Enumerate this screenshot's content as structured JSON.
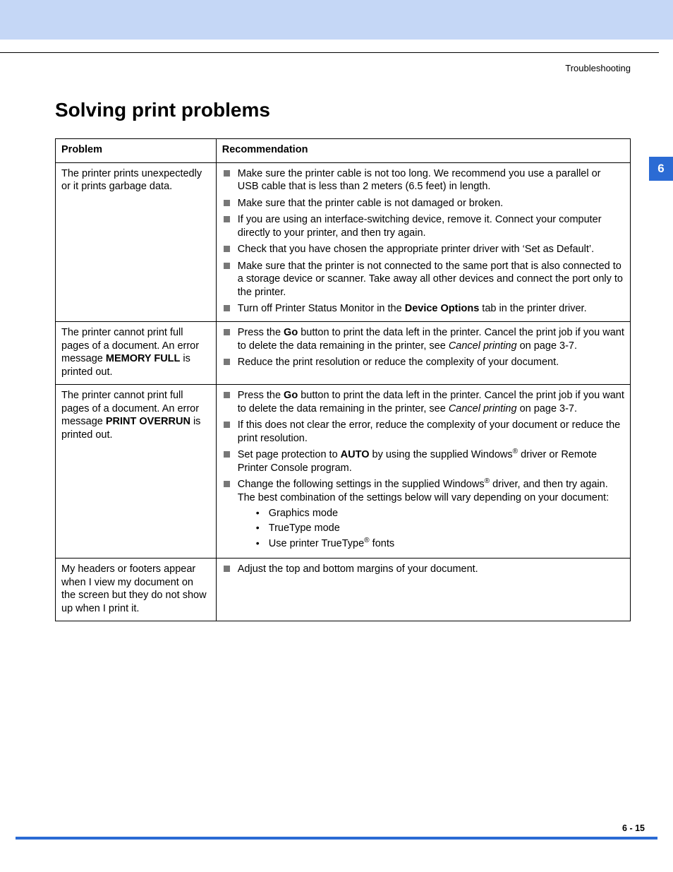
{
  "page": {
    "breadcrumb": "Troubleshooting",
    "section_title": "Solving print problems",
    "chapter_tab": "6",
    "footer": "6 - 15",
    "colors": {
      "top_band": "#c5d7f6",
      "tab_bg": "#2b6bd4",
      "tab_text": "#ffffff",
      "bullet": "#777777",
      "footer_line": "#2b6bd4"
    }
  },
  "table": {
    "headers": {
      "problem": "Problem",
      "recommendation": "Recommendation"
    },
    "rows": [
      {
        "problem_html": "The printer prints unexpectedly or it prints garbage data.",
        "recs": [
          "Make sure the printer cable is not too long. We recommend you use a parallel or USB cable that is less than 2 meters (6.5 feet) in length.",
          "Make sure that the printer cable is not damaged or broken.",
          "If you are using an interface-switching device, remove it. Connect your computer directly to your printer, and then try again.",
          "Check that you have chosen the appropriate printer driver with ‘Set as Default’.",
          "Make sure that the printer is not connected to the same port that is also connected to a storage device or scanner. Take away all other devices and connect the port only to the printer.",
          "Turn off Printer Status Monitor in the <b>Device Options</b> tab in the printer driver."
        ]
      },
      {
        "problem_html": "The printer cannot print full pages of a document. An error message <b>MEMORY FULL</b> is printed out.",
        "recs": [
          "Press the <b>Go</b> button to print the data left in the printer. Cancel the print job if you want to delete the data remaining in the printer, see <i>Cancel printing</i> on page 3-7.",
          "Reduce the print resolution or reduce the complexity of your document."
        ]
      },
      {
        "problem_html": "The printer cannot print full pages of a document. An error message <b>PRINT OVERRUN</b> is printed out.",
        "recs": [
          "Press the <b>Go</b> button to print the data left in the printer. Cancel the print job if you want to delete the data remaining in the printer, see <i>Cancel printing</i> on page 3-7.",
          "If this does not clear the error, reduce the complexity of your document or reduce the print resolution.",
          "Set page protection to <b>AUTO</b> by using the supplied Windows<sup>®</sup> driver or Remote Printer Console program.",
          "Change the following settings in the supplied Windows<sup>®</sup> driver, and then try again. The best combination of the settings below will vary depending on your document:"
        ],
        "sub": [
          "Graphics mode",
          "TrueType mode",
          "Use printer TrueType<sup>®</sup> fonts"
        ]
      },
      {
        "problem_html": "My headers or footers appear when I view my document on the screen but they do not show up when I print it.",
        "recs": [
          "Adjust the top and bottom margins of your document."
        ]
      }
    ]
  }
}
